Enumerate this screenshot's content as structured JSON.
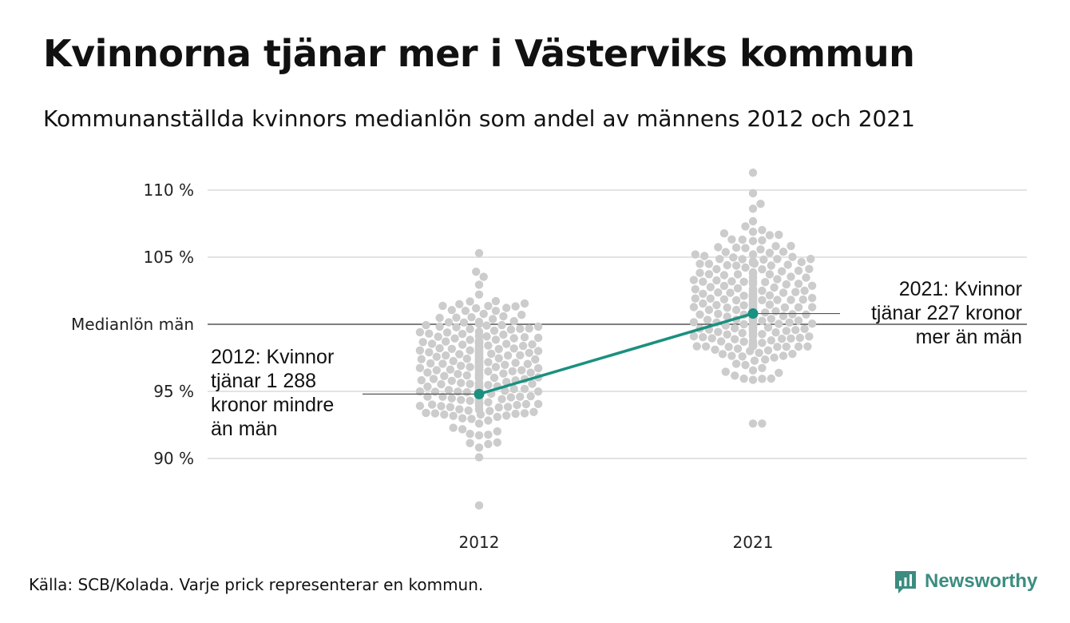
{
  "header": {
    "title": "Kvinnorna tjänar mer i Västerviks kommun",
    "subtitle": "Kommunanställda kvinnors medianlön som andel av männens 2012 och 2021"
  },
  "footer": {
    "source": "Källa: SCB/Kolada. Varje prick representerar en kommun.",
    "brand": "Newsworthy",
    "brand_icon": "newsworthy-logo-icon"
  },
  "colors": {
    "highlight": "#1a9080",
    "dots": "#cccccc",
    "grid": "#e3e3e3",
    "reference_line": "#333333",
    "brand": "#3c8c80"
  },
  "chart_data": {
    "type": "scatter",
    "subtype": "beeswarm-with-highlight-line",
    "categories": [
      "2012",
      "2021"
    ],
    "y_tick_labels": [
      "90 %",
      "95 %",
      "105 %",
      "110 %"
    ],
    "y_ticks": [
      90,
      95,
      105,
      110
    ],
    "reference_line": {
      "value": 100,
      "label": "Medianlön män"
    },
    "ylim": [
      86,
      112
    ],
    "grid": true,
    "series": [
      {
        "values_2012_approx_range": [
          86.5,
          105.3
        ],
        "median_2012": 96.8,
        "values_2021_approx_range": [
          92.6,
          111.3
        ],
        "median_2021": 101.3,
        "count_per_year": 290
      },
      {
        "name": "Västerviks kommun",
        "values": [
          94.8,
          100.8
        ],
        "highlight": true
      }
    ],
    "annotations": [
      {
        "category": "2012",
        "lines": [
          "2012: Kvinnor",
          "tjänar 1 288",
          "kronor mindre",
          "än män"
        ]
      },
      {
        "category": "2021",
        "lines": [
          "2021: Kvinnor",
          "tjänar 227 kronor",
          "mer än män"
        ]
      }
    ]
  }
}
